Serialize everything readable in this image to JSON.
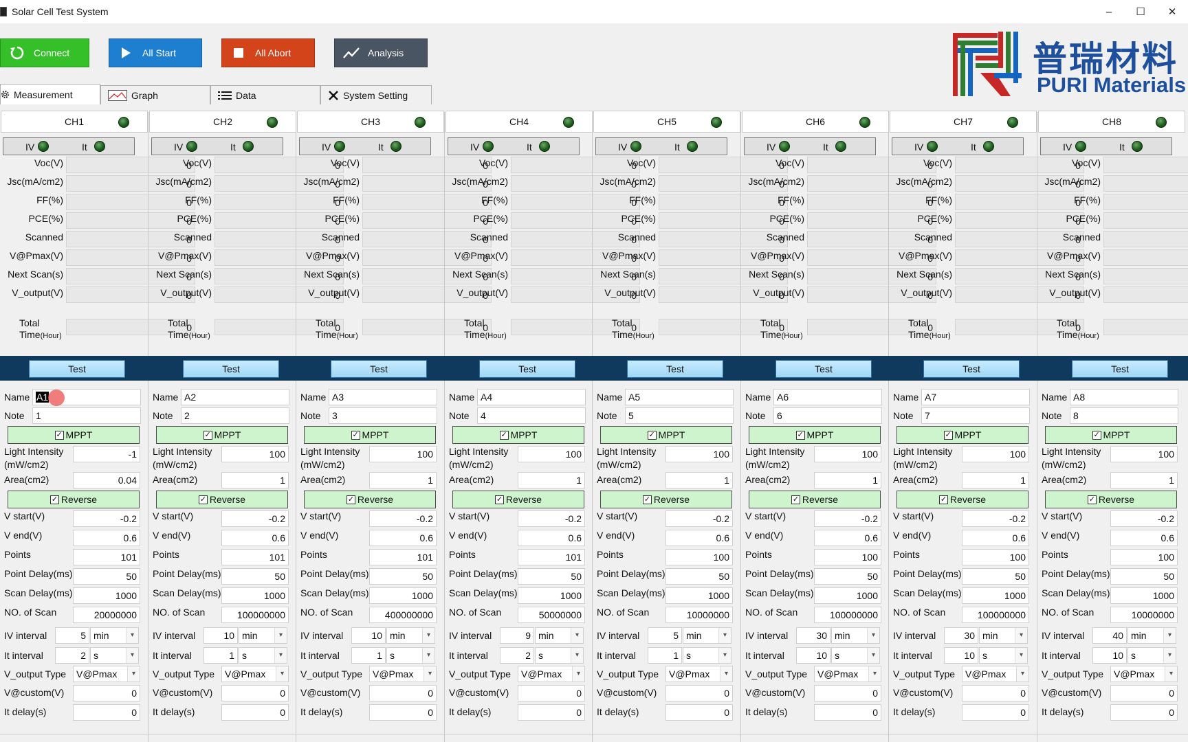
{
  "window": {
    "title": "Solar Cell Test System",
    "minimize": "–",
    "maximize": "☐",
    "close": "✕"
  },
  "toolbar": {
    "connect": "Connect",
    "all_start": "All Start",
    "all_abort": "All Abort",
    "analysis": "Analysis",
    "colors": {
      "connect": "#35c02a",
      "all_start": "#1e7fd0",
      "all_abort": "#d4441a",
      "analysis": "#4a5563"
    }
  },
  "tabs": [
    "Measurement",
    "Graph",
    "Data",
    "System Setting"
  ],
  "logo": {
    "cn": "普瑞材料",
    "en": "PURI Materials"
  },
  "status_labels": {
    "iv": "IV",
    "it": "It"
  },
  "result_labels": [
    "Voc(V)",
    "Jsc(mA/cm2)",
    "FF(%)",
    "PCE(%)",
    "Scanned",
    "V@Pmax(V)",
    "Next Scan(s)",
    "V_output(V)"
  ],
  "total_label": {
    "line1": "Total",
    "line2": "Time",
    "unit": "(Hour)"
  },
  "test_label": "Test",
  "param_labels": {
    "name": "Name",
    "note": "Note",
    "mppt": "MPPT",
    "light1": "Light Intensity",
    "light2": "(mW/cm2)",
    "area": "Area(cm2)",
    "reverse": "Reverse",
    "vstart": "V start(V)",
    "vend": "V end(V)",
    "points": "Points",
    "pdelay": "Point Delay(ms)",
    "sdelay": "Scan Delay(ms)",
    "nscan": "NO. of Scan",
    "ivint": "IV interval",
    "itint": "It interval",
    "vtype": "V_output Type",
    "vcustom": "V@custom(V)",
    "itdelay": "It delay(s)"
  },
  "channels": [
    {
      "name": "CH1",
      "results": [
        "0",
        "0",
        "0",
        "0",
        "0",
        "0",
        "0",
        "0",
        "0"
      ],
      "p": {
        "name": "A1",
        "note": "1",
        "mppt": true,
        "light": "-1",
        "area": "0.04",
        "reverse": true,
        "vstart": "-0.2",
        "vend": "0.6",
        "points": "101",
        "pdelay": "50",
        "sdelay": "1000",
        "nscan": "20000000",
        "ivint": "5",
        "ivunit": "min",
        "itint": "2",
        "itunit": "s",
        "vtype": "V@Pmax",
        "vcustom": "0",
        "itdelay": "0"
      }
    },
    {
      "name": "CH2",
      "results": [
        "0",
        "0",
        "0",
        "0",
        "0",
        "0",
        "0",
        "0",
        "0"
      ],
      "p": {
        "name": "A2",
        "note": "2",
        "mppt": true,
        "light": "100",
        "area": "1",
        "reverse": true,
        "vstart": "-0.2",
        "vend": "0.6",
        "points": "101",
        "pdelay": "50",
        "sdelay": "1000",
        "nscan": "100000000",
        "ivint": "10",
        "ivunit": "min",
        "itint": "1",
        "itunit": "s",
        "vtype": "V@Pmax",
        "vcustom": "0",
        "itdelay": "0"
      }
    },
    {
      "name": "CH3",
      "results": [
        "0",
        "0",
        "0",
        "0",
        "0",
        "0",
        "0",
        "0",
        "0"
      ],
      "p": {
        "name": "A3",
        "note": "3",
        "mppt": true,
        "light": "100",
        "area": "1",
        "reverse": true,
        "vstart": "-0.2",
        "vend": "0.6",
        "points": "101",
        "pdelay": "50",
        "sdelay": "1000",
        "nscan": "400000000",
        "ivint": "10",
        "ivunit": "min",
        "itint": "1",
        "itunit": "s",
        "vtype": "V@Pmax",
        "vcustom": "0",
        "itdelay": "0"
      }
    },
    {
      "name": "CH4",
      "results": [
        "0",
        "0",
        "0",
        "0",
        "0",
        "0",
        "0",
        "0",
        "0"
      ],
      "p": {
        "name": "A4",
        "note": "4",
        "mppt": true,
        "light": "100",
        "area": "1",
        "reverse": true,
        "vstart": "-0.2",
        "vend": "0.6",
        "points": "101",
        "pdelay": "50",
        "sdelay": "1000",
        "nscan": "50000000",
        "ivint": "9",
        "ivunit": "min",
        "itint": "2",
        "itunit": "s",
        "vtype": "V@Pmax",
        "vcustom": "0",
        "itdelay": "0"
      }
    },
    {
      "name": "CH5",
      "results": [
        "0",
        "0",
        "0",
        "0",
        "0",
        "0",
        "0",
        "0",
        "0"
      ],
      "p": {
        "name": "A5",
        "note": "5",
        "mppt": true,
        "light": "100",
        "area": "1",
        "reverse": true,
        "vstart": "-0.2",
        "vend": "0.6",
        "points": "100",
        "pdelay": "50",
        "sdelay": "1000",
        "nscan": "10000000",
        "ivint": "5",
        "ivunit": "min",
        "itint": "1",
        "itunit": "s",
        "vtype": "V@Pmax",
        "vcustom": "0",
        "itdelay": "0"
      }
    },
    {
      "name": "CH6",
      "results": [
        "0",
        "0",
        "0",
        "0",
        "0",
        "0",
        "0",
        "0",
        "0"
      ],
      "p": {
        "name": "A6",
        "note": "6",
        "mppt": true,
        "light": "100",
        "area": "1",
        "reverse": true,
        "vstart": "-0.2",
        "vend": "0.6",
        "points": "100",
        "pdelay": "50",
        "sdelay": "1000",
        "nscan": "100000000",
        "ivint": "30",
        "ivunit": "min",
        "itint": "10",
        "itunit": "s",
        "vtype": "V@Pmax",
        "vcustom": "0",
        "itdelay": "0"
      }
    },
    {
      "name": "CH7",
      "results": [
        "0",
        "0",
        "0",
        "0",
        "0",
        "0",
        "0",
        "0",
        "0"
      ],
      "p": {
        "name": "A7",
        "note": "7",
        "mppt": true,
        "light": "100",
        "area": "1",
        "reverse": true,
        "vstart": "-0.2",
        "vend": "0.6",
        "points": "100",
        "pdelay": "50",
        "sdelay": "1000",
        "nscan": "100000000",
        "ivint": "30",
        "ivunit": "min",
        "itint": "10",
        "itunit": "s",
        "vtype": "V@Pmax",
        "vcustom": "0",
        "itdelay": "0"
      }
    },
    {
      "name": "CH8",
      "results": [
        "0",
        "0",
        "0",
        "0",
        "0",
        "0",
        "0",
        "0",
        "0"
      ],
      "p": {
        "name": "A8",
        "note": "8",
        "mppt": true,
        "light": "100",
        "area": "1",
        "reverse": true,
        "vstart": "-0.2",
        "vend": "0.6",
        "points": "100",
        "pdelay": "50",
        "sdelay": "1000",
        "nscan": "10000000",
        "ivint": "40",
        "ivunit": "min",
        "itint": "10",
        "itunit": "s",
        "vtype": "V@Pmax",
        "vcustom": "0",
        "itdelay": "0"
      }
    }
  ]
}
